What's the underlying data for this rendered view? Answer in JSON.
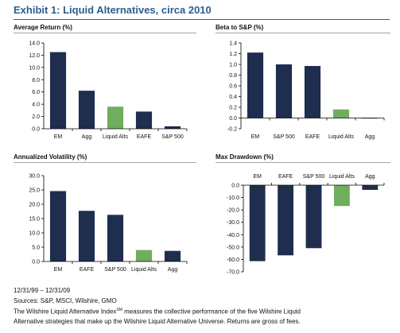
{
  "title": "Exhibit 1: Liquid Alternatives, circa 2010",
  "colors": {
    "main": "#1f2d4f",
    "highlight": "#6fae5c",
    "title": "#2c5f8e"
  },
  "footer": {
    "period": "12/31/99 – 12/31/09",
    "sources": "Sources: S&P, MSCI, Wilshire, GMO",
    "note_line1_pre": "The Wilshire Liquid Alternative Index",
    "note_line1_sup": "SM",
    "note_line1_post": " measures the collective performance of the five Wilshire Liquid",
    "note_line2": "Alternative strategies that make up the Wilshire Liquid Alternative Universe. Returns are gross of fees."
  },
  "chart_data": [
    {
      "type": "bar",
      "title": "Average Return (%)",
      "categories": [
        "EM",
        "Agg",
        "Liquid Alts",
        "EAFE",
        "S&P 500"
      ],
      "values": [
        12.5,
        6.2,
        3.6,
        2.8,
        0.4
      ],
      "highlight": "Liquid Alts",
      "ylim": [
        0,
        14
      ],
      "yticks": [
        "0.0",
        "2.0",
        "4.0",
        "6.0",
        "8.0",
        "10.0",
        "12.0",
        "14.0"
      ],
      "grid": false,
      "xlabel_position": "bottom"
    },
    {
      "type": "bar",
      "title": "Beta to S&P (%)",
      "categories": [
        "EM",
        "S&P 500",
        "EAFE",
        "Liquid Alts",
        "Agg"
      ],
      "values": [
        1.22,
        1.0,
        0.97,
        0.16,
        -0.01
      ],
      "highlight": "Liquid Alts",
      "ylim": [
        -0.2,
        1.4
      ],
      "yticks": [
        "-0.2",
        "0.0",
        "0.2",
        "0.4",
        "0.6",
        "0.8",
        "1.0",
        "1.2",
        "1.4"
      ],
      "grid": false,
      "xlabel_position": "bottom"
    },
    {
      "type": "bar",
      "title": "Annualized Volatility (%)",
      "categories": [
        "EM",
        "EAFE",
        "S&P 500",
        "Liquid Alts",
        "Agg"
      ],
      "values": [
        24.6,
        17.7,
        16.3,
        4.0,
        3.7
      ],
      "highlight": "Liquid Alts",
      "ylim": [
        0,
        30
      ],
      "yticks": [
        "0.0",
        "5.0",
        "10.0",
        "15.0",
        "20.0",
        "25.0",
        "30.0"
      ],
      "grid": false,
      "xlabel_position": "bottom"
    },
    {
      "type": "bar",
      "title": "Max Drawdown (%)",
      "categories": [
        "EM",
        "EAFE",
        "S&P 500",
        "Liquid Alts",
        "Agg"
      ],
      "values": [
        -61.4,
        -56.7,
        -50.9,
        -16.8,
        -3.8
      ],
      "highlight": "Liquid Alts",
      "ylim": [
        -70,
        0
      ],
      "yticks": [
        "-70.0",
        "-60.0",
        "-50.0",
        "-40.0",
        "-30.0",
        "-20.0",
        "-10.0",
        "0.0"
      ],
      "grid": false,
      "xlabel_position": "top"
    }
  ]
}
